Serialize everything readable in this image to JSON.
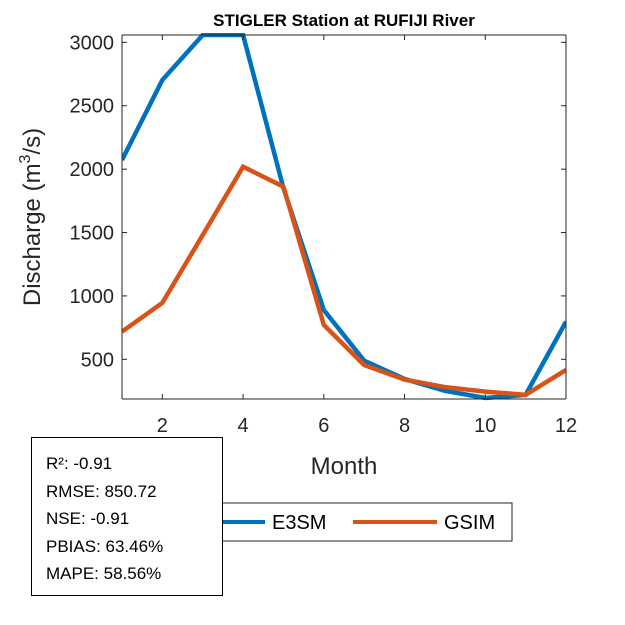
{
  "chart_data": {
    "type": "line",
    "title": "STIGLER  Station at  RUFIJI  River",
    "xlabel": "Month",
    "ylabel_prefix": "Discharge (m",
    "ylabel_sup": "3",
    "ylabel_suffix": "/s)",
    "x": [
      1,
      2,
      3,
      4,
      5,
      6,
      7,
      8,
      9,
      10,
      11,
      12
    ],
    "xlim": [
      1,
      12
    ],
    "ylim": [
      187,
      3058
    ],
    "xticks": [
      2,
      4,
      6,
      8,
      10,
      12
    ],
    "yticks": [
      500,
      1000,
      1500,
      2000,
      2500,
      3000
    ],
    "grid": false,
    "legend_position": "bottom-outside",
    "series": [
      {
        "name": "E3SM",
        "color": "#0072BD",
        "values": [
          2072,
          2703,
          3058,
          3058,
          1850,
          889,
          489,
          345,
          252,
          195,
          220,
          797
        ]
      },
      {
        "name": "GSIM",
        "color": "#D95319",
        "values": [
          718,
          946,
          1480,
          2019,
          1861,
          771,
          455,
          340,
          281,
          245,
          220,
          416
        ]
      }
    ]
  },
  "stats": {
    "lines": [
      "R²: -0.91",
      "RMSE: 850.72",
      "NSE: -0.91",
      "PBIAS: 63.46%",
      "MAPE: 58.56%"
    ]
  }
}
